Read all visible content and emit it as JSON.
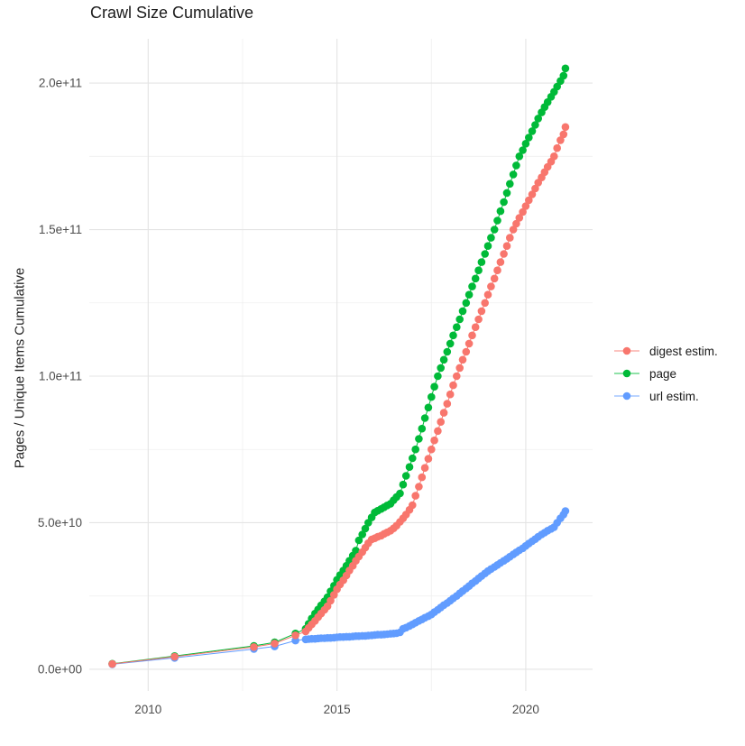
{
  "chart_data": {
    "type": "line",
    "title": "Crawl Size Cumulative",
    "xlabel": "",
    "ylabel": "Pages / Unique Items Cumulative",
    "values_unit": "billions (1e9)",
    "grid": true,
    "legend_position": "right",
    "plot_background": "#FFFFFF",
    "grid_major_color": "#E4E4E4",
    "grid_minor_color": "#EFEFEF",
    "tick_label_color": "#4D4D4D",
    "x_axis": {
      "range": [
        2008.44,
        2021.77
      ],
      "ticks": [
        {
          "label": "2010",
          "value": 2010
        },
        {
          "label": "2015",
          "value": 2015
        },
        {
          "label": "2020",
          "value": 2020
        }
      ],
      "minor": [
        2012.5,
        2017.5
      ]
    },
    "y_axis": {
      "range_billions": [
        -7.4,
        215.1
      ],
      "ticks": [
        {
          "label": "0.0e+00",
          "value": 0
        },
        {
          "label": "5.0e+10",
          "value": 50
        },
        {
          "label": "1.0e+11",
          "value": 100
        },
        {
          "label": "1.5e+11",
          "value": 150
        },
        {
          "label": "2.0e+11",
          "value": 200
        }
      ],
      "minor": [
        25,
        75,
        125,
        175
      ]
    },
    "series": [
      {
        "name": "digest estim.",
        "color": "#F8766D",
        "points": [
          [
            2009.05,
            1.8
          ],
          [
            2010.7,
            4.3
          ],
          [
            2012.8,
            7.6
          ],
          [
            2013.35,
            8.8
          ],
          [
            2013.9,
            11.6
          ],
          [
            2014.17,
            12.9
          ],
          [
            2014.25,
            14.1
          ],
          [
            2014.33,
            15.3
          ],
          [
            2014.42,
            16.5
          ],
          [
            2014.5,
            17.8
          ],
          [
            2014.58,
            19.0
          ],
          [
            2014.67,
            20.3
          ],
          [
            2014.75,
            21.5
          ],
          [
            2014.83,
            23.4
          ],
          [
            2014.92,
            25.4
          ],
          [
            2015.0,
            27.3
          ],
          [
            2015.08,
            28.9
          ],
          [
            2015.17,
            30.4
          ],
          [
            2015.25,
            32.0
          ],
          [
            2015.33,
            33.7
          ],
          [
            2015.42,
            35.3
          ],
          [
            2015.5,
            37.0
          ],
          [
            2015.58,
            38.5
          ],
          [
            2015.67,
            40.0
          ],
          [
            2015.75,
            41.5
          ],
          [
            2015.83,
            43.0
          ],
          [
            2015.92,
            44.3
          ],
          [
            2016.0,
            44.7
          ],
          [
            2016.08,
            45.2
          ],
          [
            2016.17,
            45.6
          ],
          [
            2016.25,
            46.2
          ],
          [
            2016.33,
            46.7
          ],
          [
            2016.42,
            47.3
          ],
          [
            2016.5,
            48.1
          ],
          [
            2016.58,
            49.0
          ],
          [
            2016.67,
            50.3
          ],
          [
            2016.75,
            51.5
          ],
          [
            2016.83,
            52.8
          ],
          [
            2016.92,
            54.4
          ],
          [
            2017.0,
            56.0
          ],
          [
            2017.08,
            59.2
          ],
          [
            2017.17,
            62.3
          ],
          [
            2017.25,
            65.5
          ],
          [
            2017.33,
            68.7
          ],
          [
            2017.42,
            71.8
          ],
          [
            2017.5,
            75.0
          ],
          [
            2017.58,
            78.1
          ],
          [
            2017.67,
            81.3
          ],
          [
            2017.75,
            84.4
          ],
          [
            2017.83,
            87.5
          ],
          [
            2017.92,
            90.6
          ],
          [
            2018.0,
            93.8
          ],
          [
            2018.08,
            96.9
          ],
          [
            2018.17,
            100.0
          ],
          [
            2018.25,
            102.8
          ],
          [
            2018.33,
            105.6
          ],
          [
            2018.42,
            108.3
          ],
          [
            2018.5,
            111.1
          ],
          [
            2018.58,
            113.9
          ],
          [
            2018.67,
            116.7
          ],
          [
            2018.75,
            119.4
          ],
          [
            2018.83,
            122.2
          ],
          [
            2018.92,
            125.0
          ],
          [
            2019.0,
            127.8
          ],
          [
            2019.08,
            130.6
          ],
          [
            2019.17,
            133.3
          ],
          [
            2019.25,
            136.1
          ],
          [
            2019.33,
            138.9
          ],
          [
            2019.42,
            141.7
          ],
          [
            2019.5,
            144.4
          ],
          [
            2019.58,
            147.2
          ],
          [
            2019.67,
            150.0
          ],
          [
            2019.75,
            152.0
          ],
          [
            2019.83,
            154.0
          ],
          [
            2019.92,
            156.0
          ],
          [
            2020.0,
            158.0
          ],
          [
            2020.08,
            160.0
          ],
          [
            2020.17,
            162.0
          ],
          [
            2020.25,
            164.0
          ],
          [
            2020.33,
            166.0
          ],
          [
            2020.42,
            167.8
          ],
          [
            2020.5,
            169.6
          ],
          [
            2020.58,
            171.4
          ],
          [
            2020.67,
            173.2
          ],
          [
            2020.75,
            175.0
          ],
          [
            2020.83,
            177.8
          ],
          [
            2020.92,
            180.5
          ],
          [
            2021.0,
            182.5
          ],
          [
            2021.05,
            185.0
          ]
        ]
      },
      {
        "name": "page",
        "color": "#00BA38",
        "points": [
          [
            2009.05,
            1.9
          ],
          [
            2010.7,
            4.5
          ],
          [
            2012.8,
            8.0
          ],
          [
            2013.35,
            9.2
          ],
          [
            2013.9,
            12.2
          ],
          [
            2014.17,
            13.8
          ],
          [
            2014.25,
            15.5
          ],
          [
            2014.33,
            17.3
          ],
          [
            2014.42,
            19.0
          ],
          [
            2014.5,
            20.4
          ],
          [
            2014.58,
            21.8
          ],
          [
            2014.67,
            23.2
          ],
          [
            2014.75,
            24.6
          ],
          [
            2014.83,
            26.6
          ],
          [
            2014.92,
            28.5
          ],
          [
            2015.0,
            30.5
          ],
          [
            2015.08,
            32.1
          ],
          [
            2015.17,
            33.7
          ],
          [
            2015.25,
            35.3
          ],
          [
            2015.33,
            37.0
          ],
          [
            2015.42,
            38.8
          ],
          [
            2015.5,
            40.5
          ],
          [
            2015.58,
            44.0
          ],
          [
            2015.67,
            46.0
          ],
          [
            2015.75,
            48.0
          ],
          [
            2015.83,
            50.0
          ],
          [
            2015.92,
            51.8
          ],
          [
            2016.0,
            53.5
          ],
          [
            2016.08,
            54.1
          ],
          [
            2016.17,
            54.7
          ],
          [
            2016.25,
            55.3
          ],
          [
            2016.33,
            55.9
          ],
          [
            2016.42,
            56.5
          ],
          [
            2016.5,
            57.7
          ],
          [
            2016.58,
            58.8
          ],
          [
            2016.67,
            60.0
          ],
          [
            2016.75,
            63.0
          ],
          [
            2016.83,
            66.0
          ],
          [
            2016.92,
            69.0
          ],
          [
            2017.0,
            72.0
          ],
          [
            2017.08,
            75.0
          ],
          [
            2017.17,
            78.6
          ],
          [
            2017.25,
            82.1
          ],
          [
            2017.33,
            85.7
          ],
          [
            2017.42,
            89.3
          ],
          [
            2017.5,
            92.9
          ],
          [
            2017.58,
            96.4
          ],
          [
            2017.67,
            100.0
          ],
          [
            2017.75,
            102.8
          ],
          [
            2017.83,
            105.6
          ],
          [
            2017.92,
            108.3
          ],
          [
            2018.0,
            111.1
          ],
          [
            2018.08,
            113.9
          ],
          [
            2018.17,
            116.7
          ],
          [
            2018.25,
            119.4
          ],
          [
            2018.33,
            122.2
          ],
          [
            2018.42,
            125.0
          ],
          [
            2018.5,
            127.8
          ],
          [
            2018.58,
            130.6
          ],
          [
            2018.67,
            133.3
          ],
          [
            2018.75,
            136.1
          ],
          [
            2018.83,
            138.9
          ],
          [
            2018.92,
            141.7
          ],
          [
            2019.0,
            144.4
          ],
          [
            2019.08,
            147.2
          ],
          [
            2019.17,
            150.0
          ],
          [
            2019.25,
            153.1
          ],
          [
            2019.33,
            156.3
          ],
          [
            2019.42,
            159.4
          ],
          [
            2019.5,
            162.5
          ],
          [
            2019.58,
            165.6
          ],
          [
            2019.67,
            168.8
          ],
          [
            2019.75,
            171.9
          ],
          [
            2019.83,
            175.0
          ],
          [
            2019.92,
            177.1
          ],
          [
            2020.0,
            179.3
          ],
          [
            2020.08,
            181.4
          ],
          [
            2020.17,
            183.6
          ],
          [
            2020.25,
            185.7
          ],
          [
            2020.33,
            187.9
          ],
          [
            2020.42,
            190.0
          ],
          [
            2020.5,
            191.8
          ],
          [
            2020.58,
            193.5
          ],
          [
            2020.67,
            195.3
          ],
          [
            2020.75,
            197.0
          ],
          [
            2020.83,
            198.8
          ],
          [
            2020.92,
            200.7
          ],
          [
            2021.0,
            202.5
          ],
          [
            2021.05,
            205.0
          ]
        ]
      },
      {
        "name": "url estim.",
        "color": "#619CFF",
        "points": [
          [
            2009.05,
            1.7
          ],
          [
            2010.7,
            3.9
          ],
          [
            2012.8,
            6.9
          ],
          [
            2013.35,
            7.8
          ],
          [
            2013.9,
            9.8
          ],
          [
            2014.17,
            10.2
          ],
          [
            2014.25,
            10.3
          ],
          [
            2014.33,
            10.4
          ],
          [
            2014.42,
            10.4
          ],
          [
            2014.5,
            10.5
          ],
          [
            2014.58,
            10.6
          ],
          [
            2014.67,
            10.6
          ],
          [
            2014.75,
            10.7
          ],
          [
            2014.83,
            10.7
          ],
          [
            2014.92,
            10.8
          ],
          [
            2015.0,
            10.9
          ],
          [
            2015.08,
            11.0
          ],
          [
            2015.17,
            11.0
          ],
          [
            2015.25,
            11.1
          ],
          [
            2015.33,
            11.1
          ],
          [
            2015.42,
            11.2
          ],
          [
            2015.5,
            11.3
          ],
          [
            2015.58,
            11.3
          ],
          [
            2015.67,
            11.4
          ],
          [
            2015.75,
            11.4
          ],
          [
            2015.83,
            11.5
          ],
          [
            2015.92,
            11.6
          ],
          [
            2016.0,
            11.7
          ],
          [
            2016.08,
            11.8
          ],
          [
            2016.17,
            11.8
          ],
          [
            2016.25,
            11.9
          ],
          [
            2016.33,
            12.0
          ],
          [
            2016.42,
            12.1
          ],
          [
            2016.5,
            12.2
          ],
          [
            2016.58,
            12.3
          ],
          [
            2016.67,
            12.6
          ],
          [
            2016.75,
            13.8
          ],
          [
            2016.83,
            14.2
          ],
          [
            2016.92,
            14.8
          ],
          [
            2017.0,
            15.3
          ],
          [
            2017.08,
            15.9
          ],
          [
            2017.17,
            16.5
          ],
          [
            2017.25,
            17.0
          ],
          [
            2017.33,
            17.6
          ],
          [
            2017.42,
            18.1
          ],
          [
            2017.5,
            18.7
          ],
          [
            2017.58,
            19.5
          ],
          [
            2017.67,
            20.3
          ],
          [
            2017.75,
            21.1
          ],
          [
            2017.83,
            21.9
          ],
          [
            2017.92,
            22.6
          ],
          [
            2018.0,
            23.4
          ],
          [
            2018.08,
            24.2
          ],
          [
            2018.17,
            25.0
          ],
          [
            2018.25,
            25.9
          ],
          [
            2018.33,
            26.7
          ],
          [
            2018.42,
            27.6
          ],
          [
            2018.5,
            28.4
          ],
          [
            2018.58,
            29.3
          ],
          [
            2018.67,
            30.1
          ],
          [
            2018.75,
            31.0
          ],
          [
            2018.83,
            31.8
          ],
          [
            2018.92,
            32.7
          ],
          [
            2019.0,
            33.5
          ],
          [
            2019.08,
            34.2
          ],
          [
            2019.17,
            34.9
          ],
          [
            2019.25,
            35.6
          ],
          [
            2019.33,
            36.3
          ],
          [
            2019.42,
            37.0
          ],
          [
            2019.5,
            37.7
          ],
          [
            2019.58,
            38.4
          ],
          [
            2019.67,
            39.2
          ],
          [
            2019.75,
            39.9
          ],
          [
            2019.83,
            40.6
          ],
          [
            2019.92,
            41.3
          ],
          [
            2020.0,
            42.1
          ],
          [
            2020.08,
            42.9
          ],
          [
            2020.17,
            43.7
          ],
          [
            2020.25,
            44.4
          ],
          [
            2020.33,
            45.2
          ],
          [
            2020.42,
            46.0
          ],
          [
            2020.5,
            46.6
          ],
          [
            2020.58,
            47.3
          ],
          [
            2020.67,
            47.9
          ],
          [
            2020.75,
            48.5
          ],
          [
            2020.83,
            50.0
          ],
          [
            2020.92,
            51.5
          ],
          [
            2021.0,
            52.8
          ],
          [
            2021.05,
            54.0
          ]
        ]
      }
    ]
  }
}
